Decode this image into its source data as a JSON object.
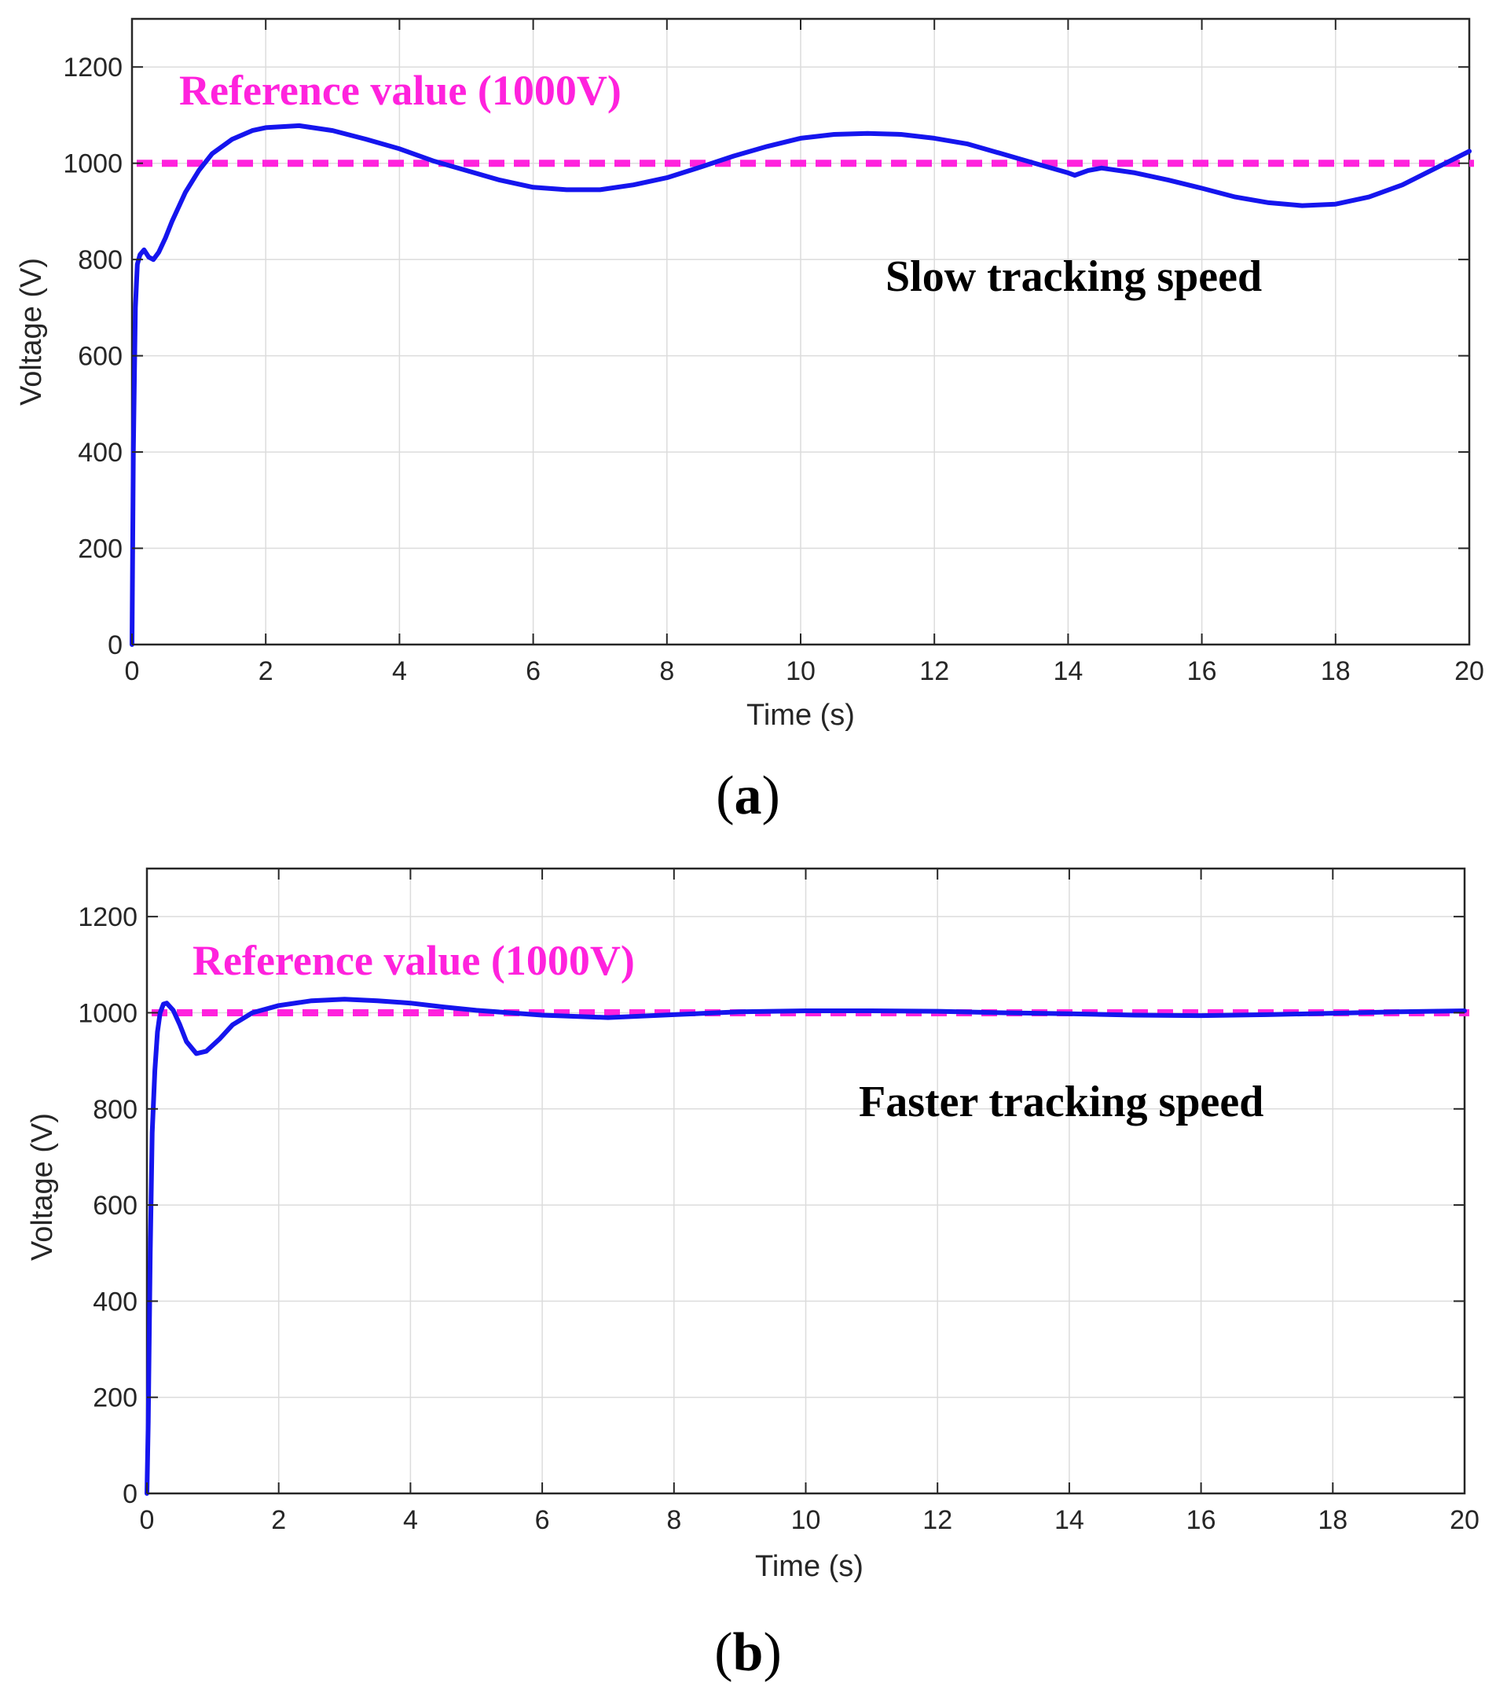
{
  "colors": {
    "signal": "#1515ee",
    "reference": "#ff22dd",
    "axis": "#262626",
    "grid": "#dcdcdc"
  },
  "chart_data": [
    {
      "id": "a",
      "type": "line",
      "panel_label": "a",
      "xlabel": "Time (s)",
      "ylabel": "Voltage (V)",
      "xlim": [
        0,
        20
      ],
      "ylim": [
        0,
        1300
      ],
      "xticks": [
        0,
        2,
        4,
        6,
        8,
        10,
        12,
        14,
        16,
        18,
        20
      ],
      "yticks": [
        0,
        200,
        400,
        600,
        800,
        1000,
        1200
      ],
      "grid": true,
      "reference": {
        "value": 1000,
        "label": "Reference value (1000V)"
      },
      "annotation": "Slow tracking speed",
      "series": [
        {
          "name": "Voltage",
          "x": [
            0,
            0.02,
            0.05,
            0.08,
            0.12,
            0.18,
            0.25,
            0.32,
            0.4,
            0.5,
            0.6,
            0.8,
            1.0,
            1.2,
            1.5,
            1.8,
            2.0,
            2.5,
            3.0,
            3.5,
            4.0,
            4.5,
            5.0,
            5.5,
            6.0,
            6.5,
            7.0,
            7.5,
            8.0,
            8.5,
            9.0,
            9.5,
            10.0,
            10.5,
            11.0,
            11.5,
            12.0,
            12.5,
            13.0,
            13.5,
            14.0,
            14.1,
            14.3,
            14.5,
            15.0,
            15.5,
            16.0,
            16.5,
            17.0,
            17.5,
            18.0,
            18.5,
            19.0,
            19.5,
            20.0
          ],
          "y": [
            0,
            400,
            700,
            790,
            810,
            820,
            805,
            800,
            815,
            845,
            880,
            940,
            985,
            1020,
            1050,
            1068,
            1074,
            1078,
            1068,
            1050,
            1030,
            1005,
            985,
            965,
            950,
            945,
            945,
            955,
            970,
            992,
            1015,
            1035,
            1052,
            1060,
            1062,
            1060,
            1052,
            1040,
            1020,
            1000,
            980,
            975,
            985,
            990,
            980,
            965,
            948,
            930,
            918,
            912,
            915,
            930,
            955,
            990,
            1025
          ]
        }
      ]
    },
    {
      "id": "b",
      "type": "line",
      "panel_label": "b",
      "xlabel": "Time (s)",
      "ylabel": "Voltage (V)",
      "xlim": [
        0,
        20
      ],
      "ylim": [
        0,
        1300
      ],
      "xticks": [
        0,
        2,
        4,
        6,
        8,
        10,
        12,
        14,
        16,
        18,
        20
      ],
      "yticks": [
        0,
        200,
        400,
        600,
        800,
        1000,
        1200
      ],
      "grid": true,
      "reference": {
        "value": 1000,
        "label": "Reference value (1000V)"
      },
      "annotation": "Faster tracking speed",
      "series": [
        {
          "name": "Voltage",
          "x": [
            0,
            0.02,
            0.05,
            0.08,
            0.12,
            0.16,
            0.2,
            0.25,
            0.3,
            0.4,
            0.5,
            0.6,
            0.75,
            0.9,
            1.1,
            1.3,
            1.6,
            2.0,
            2.5,
            3.0,
            3.5,
            4.0,
            4.5,
            5.0,
            6.0,
            7.0,
            8.0,
            9.0,
            10.0,
            11.0,
            12.0,
            13.0,
            14.0,
            15.0,
            16.0,
            17.0,
            18.0,
            19.0,
            20.0
          ],
          "y": [
            0,
            150,
            500,
            750,
            880,
            960,
            1000,
            1018,
            1020,
            1005,
            975,
            940,
            915,
            920,
            945,
            975,
            1000,
            1015,
            1025,
            1028,
            1025,
            1020,
            1012,
            1005,
            995,
            990,
            996,
            1002,
            1004,
            1004,
            1003,
            1000,
            998,
            995,
            994,
            996,
            999,
            1002,
            1004
          ]
        }
      ]
    }
  ]
}
